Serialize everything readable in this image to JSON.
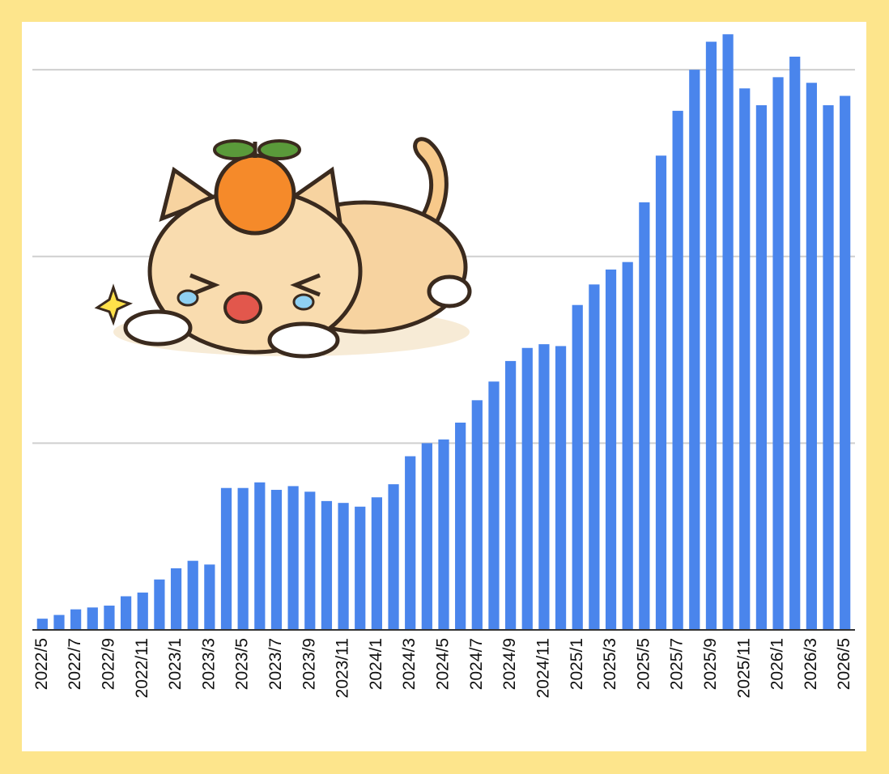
{
  "chart_data": {
    "type": "bar",
    "categories": [
      "2022/5",
      null,
      "2022/7",
      null,
      "2022/9",
      null,
      "2022/11",
      null,
      "2023/1",
      null,
      "2023/3",
      null,
      "2023/5",
      null,
      "2023/7",
      null,
      "2023/9",
      null,
      "2023/11",
      null,
      "2024/1",
      null,
      "2024/3",
      null,
      "2024/5",
      null,
      "2024/7",
      null,
      "2024/9",
      null,
      "2024/11",
      null,
      "2025/1",
      null,
      "2025/3",
      null,
      "2025/5",
      null,
      "2025/7",
      null,
      "2025/9",
      null,
      "2025/11",
      null,
      "2026/1",
      null,
      "2026/3",
      null,
      "2026/5"
    ],
    "values": [
      6,
      8,
      11,
      12,
      13,
      18,
      20,
      27,
      33,
      37,
      35,
      76,
      76,
      79,
      75,
      77,
      74,
      69,
      68,
      66,
      71,
      78,
      93,
      100,
      102,
      111,
      123,
      133,
      144,
      151,
      153,
      152,
      174,
      185,
      193,
      197,
      229,
      254,
      278,
      300,
      315,
      319,
      290,
      281,
      296,
      307,
      293,
      281,
      286
    ],
    "color": "#4a85ec",
    "ylim": [
      0,
      320
    ],
    "yticks": [
      100,
      200,
      300
    ],
    "grid": true
  }
}
